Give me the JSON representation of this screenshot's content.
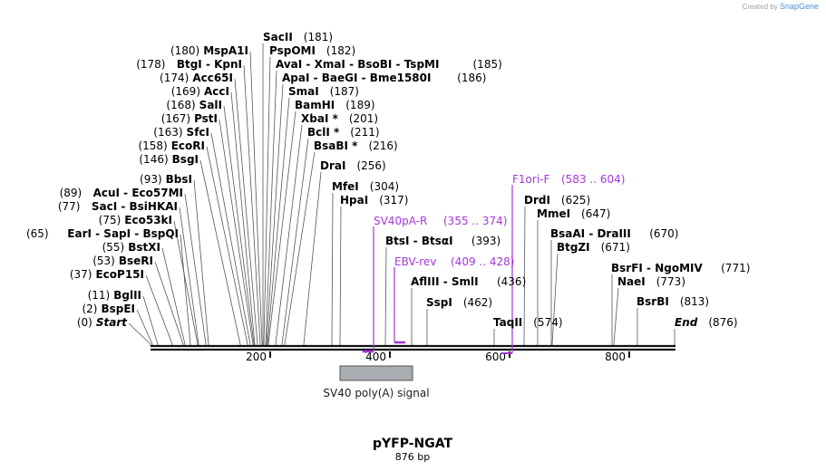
{
  "credit": {
    "prefix": "Created by",
    "brand": "SnapGene"
  },
  "plasmid": {
    "name": "pYFP-NGAT",
    "length_label": "876 bp"
  },
  "ruler": {
    "ticks": [
      {
        "label": "200"
      },
      {
        "label": "400"
      },
      {
        "label": "600"
      },
      {
        "label": "800"
      }
    ]
  },
  "sites": [
    {
      "pos": "(0)",
      "name": "Start"
    },
    {
      "pos": "(2)",
      "name": "BspEI"
    },
    {
      "pos": "(11)",
      "name": "BglII"
    },
    {
      "pos": "(37)",
      "name": "EcoP15I"
    },
    {
      "pos": "(53)",
      "name": "BseRI"
    },
    {
      "pos": "(55)",
      "name": "BstXI"
    },
    {
      "pos": "(65)",
      "name": "EarI  -  SapI  -  BspQI"
    },
    {
      "pos": "(75)",
      "name": "Eco53kI"
    },
    {
      "pos": "(77)",
      "name": "SacI  -  BsiHKAI"
    },
    {
      "pos": "(89)",
      "name": "AcuI  -  Eco57MI"
    },
    {
      "pos": "(93)",
      "name": "BbsI"
    },
    {
      "pos": "(146)",
      "name": "BsgI"
    },
    {
      "pos": "(158)",
      "name": "EcoRI"
    },
    {
      "pos": "(163)",
      "name": "SfcI"
    },
    {
      "pos": "(167)",
      "name": "PstI"
    },
    {
      "pos": "(168)",
      "name": "SalI"
    },
    {
      "pos": "(169)",
      "name": "AccI"
    },
    {
      "pos": "(174)",
      "name": "Acc65I"
    },
    {
      "pos": "(178)",
      "name": "BtgI  -  KpnI"
    },
    {
      "pos": "(180)",
      "name": "MspA1I"
    },
    {
      "pos": "(181)",
      "name": "SacII"
    },
    {
      "pos": "(182)",
      "name": "PspOMI"
    },
    {
      "pos": "(185)",
      "name": "AvaI  -  XmaI  -  BsoBI  -  TspMI"
    },
    {
      "pos": "(186)",
      "name": "ApaI  -  BaeGI  -  Bme1580I"
    },
    {
      "pos": "(187)",
      "name": "SmaI"
    },
    {
      "pos": "(189)",
      "name": "BamHI"
    },
    {
      "pos": "(201)",
      "name": "XbaI *"
    },
    {
      "pos": "(211)",
      "name": "BclI *"
    },
    {
      "pos": "(216)",
      "name": "BsaBI *"
    },
    {
      "pos": "(256)",
      "name": "DraI"
    },
    {
      "pos": "(304)",
      "name": "MfeI"
    },
    {
      "pos": "(317)",
      "name": "HpaI"
    },
    {
      "pos": "(393)",
      "name": "BtsI  -  BtsαI"
    },
    {
      "pos": "(436)",
      "name": "AflIII  -  SmlI"
    },
    {
      "pos": "(462)",
      "name": "SspI"
    },
    {
      "pos": "(574)",
      "name": "TaqII"
    },
    {
      "pos": "(625)",
      "name": "DrdI"
    },
    {
      "pos": "(647)",
      "name": "MmeI"
    },
    {
      "pos": "(670)",
      "name": "BsaAI  -  DraIII"
    },
    {
      "pos": "(671)",
      "name": "BtgZI"
    },
    {
      "pos": "(771)",
      "name": "BsrFI  -  NgoMIV"
    },
    {
      "pos": "(773)",
      "name": "NaeI"
    },
    {
      "pos": "(813)",
      "name": "BsrBI"
    },
    {
      "pos": "(876)",
      "name": "End"
    }
  ],
  "primers": [
    {
      "name": "SV40pA-R",
      "range": "(355 .. 374)"
    },
    {
      "name": "EBV-rev",
      "range": "(409 .. 428)"
    },
    {
      "name": "F1ori-F",
      "range": "(583 .. 604)"
    }
  ],
  "feature": {
    "label": "SV40 poly(A) signal"
  }
}
